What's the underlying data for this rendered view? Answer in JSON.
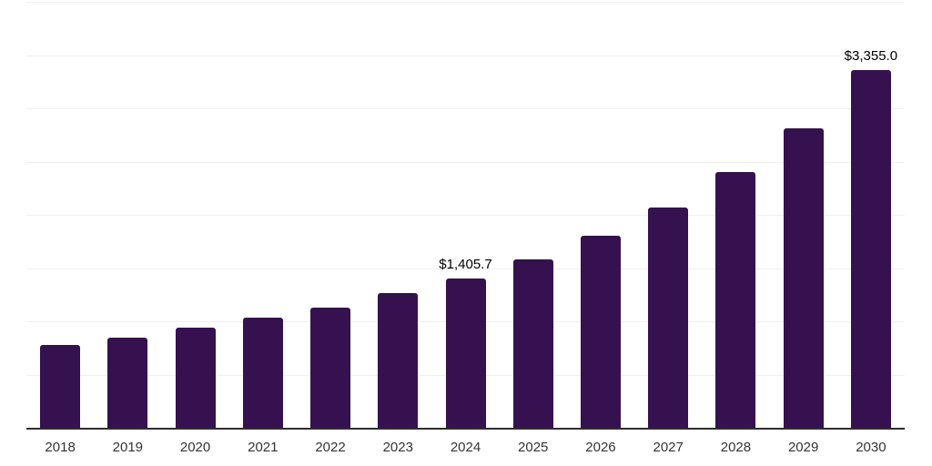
{
  "chart_data": {
    "type": "bar",
    "title": "",
    "xlabel": "",
    "ylabel": "",
    "categories": [
      "2018",
      "2019",
      "2020",
      "2021",
      "2022",
      "2023",
      "2024",
      "2025",
      "2026",
      "2027",
      "2028",
      "2029",
      "2030"
    ],
    "values": [
      775,
      850,
      940,
      1035,
      1130,
      1265,
      1405.7,
      1580,
      1805,
      2070,
      2400,
      2815,
      3355.0
    ],
    "value_labels": {
      "2024": "$1,405.7",
      "2030": "$3,355.0"
    },
    "ylim": [
      0,
      4000
    ],
    "grid_step": 500,
    "grid": "horizontal",
    "y_axis_tick_labels_visible": false,
    "legend": "none",
    "colors": {
      "bar": "#36114f",
      "gridline": "#f0f0f0",
      "axis_line": "#2d2d2d",
      "tick_label": "#333333",
      "value_label": "#000000",
      "background": "#ffffff"
    }
  }
}
